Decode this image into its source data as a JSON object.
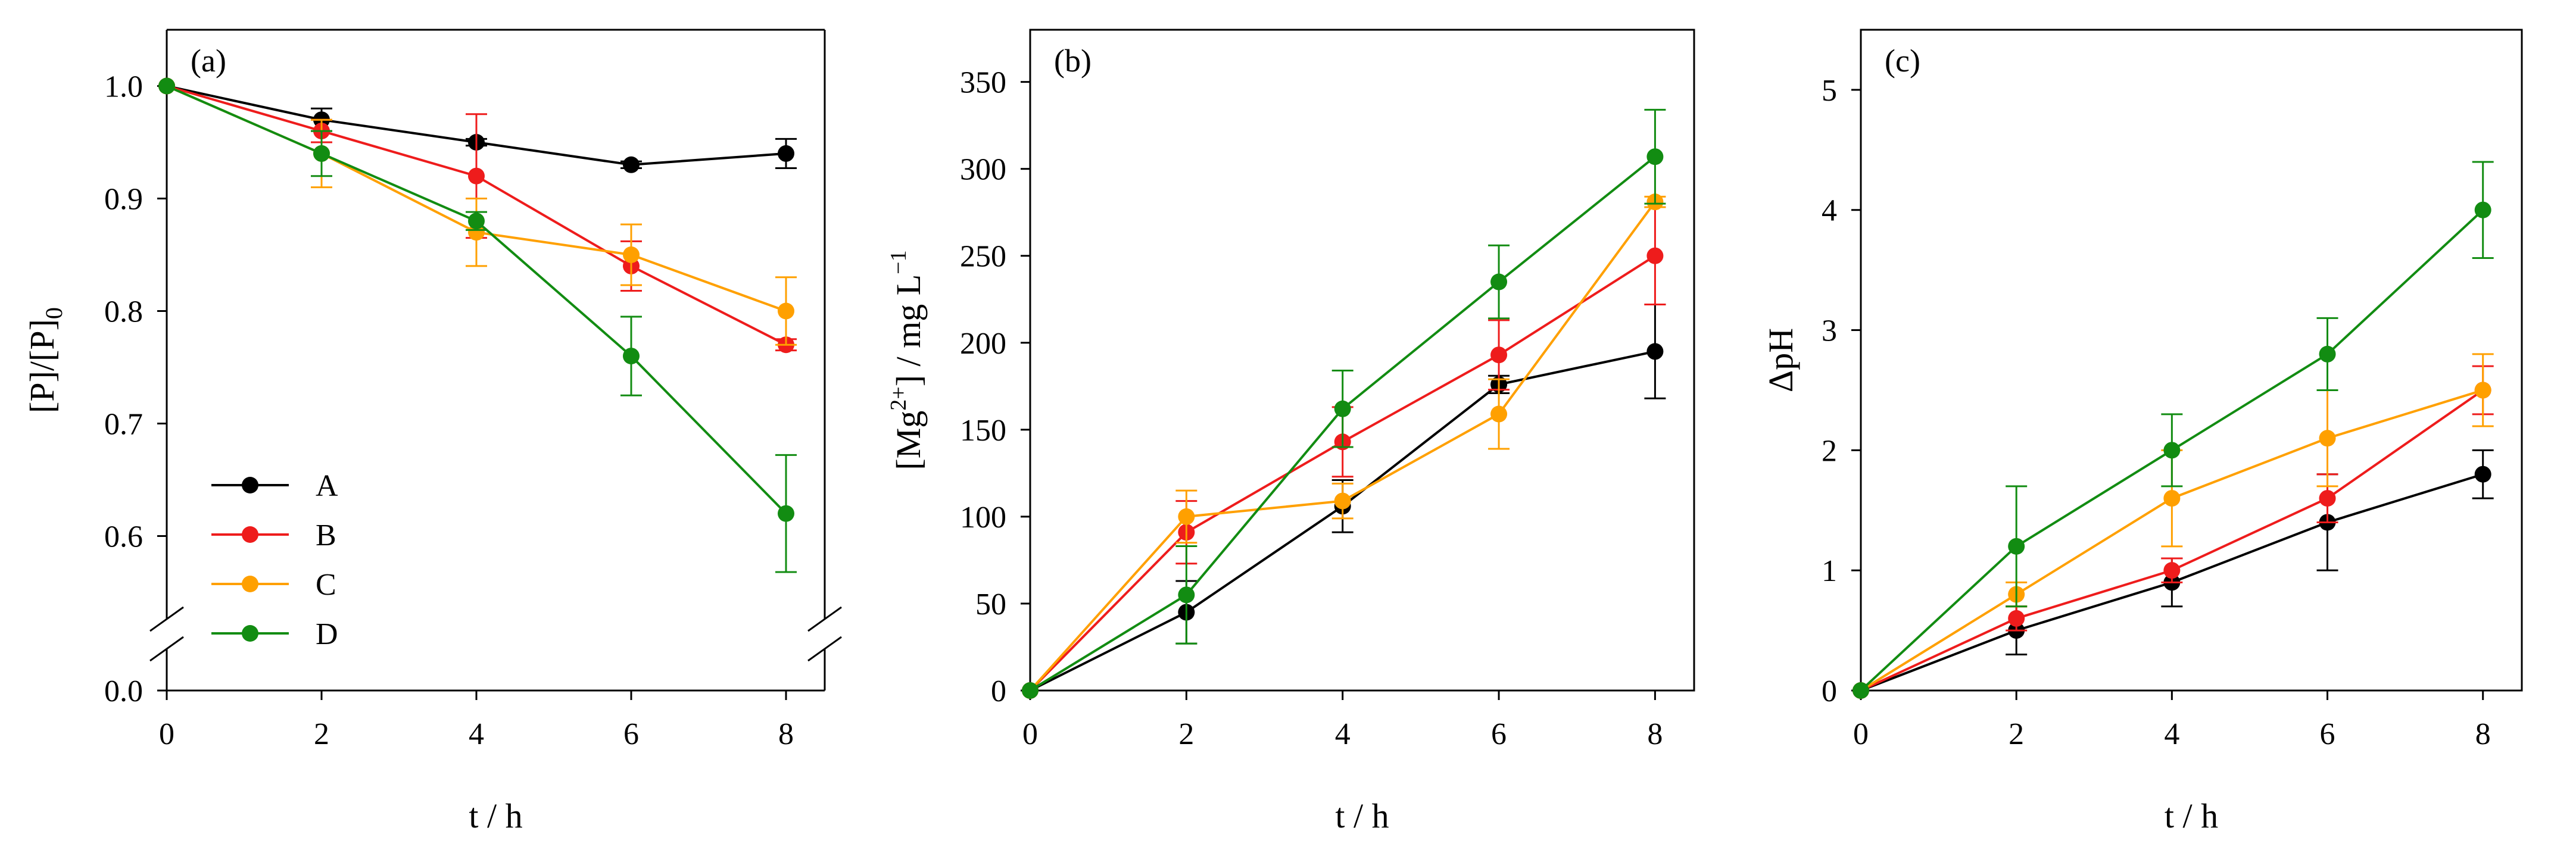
{
  "colors": {
    "A": "#000000",
    "B": "#ee1c1c",
    "C": "#ffa000",
    "D": "#128c12"
  },
  "chart_data": [
    {
      "type": "line",
      "panel_label": "(a)",
      "xlabel": "t / h",
      "ylabel_main": "[P]/[P]",
      "ylabel_sub": "0",
      "x_ticks": [
        "0",
        "2",
        "4",
        "6",
        "8"
      ],
      "y_ticks": [
        "1.0",
        "0.9",
        "0.8",
        "0.7",
        "0.6"
      ],
      "y_break_tick": "0.0",
      "ylim": [
        0.55,
        1.05
      ],
      "xlim": [
        0,
        8.5
      ],
      "legend": {
        "placement": "bottom-left",
        "entries": [
          "A",
          "B",
          "C",
          "D"
        ]
      },
      "x": [
        0,
        2,
        4,
        6,
        8
      ],
      "series": [
        {
          "name": "A",
          "values": [
            1.0,
            0.97,
            0.95,
            0.93,
            0.94
          ],
          "errors": [
            0,
            0.01,
            0.003,
            0.003,
            0.013
          ]
        },
        {
          "name": "B",
          "values": [
            1.0,
            0.96,
            0.92,
            0.84,
            0.77
          ],
          "errors": [
            0,
            0.01,
            0.055,
            0.022,
            0.005
          ]
        },
        {
          "name": "C",
          "values": [
            1.0,
            0.94,
            0.87,
            0.85,
            0.8
          ],
          "errors": [
            0,
            0.03,
            0.03,
            0.027,
            0.03
          ]
        },
        {
          "name": "D",
          "values": [
            1.0,
            0.94,
            0.88,
            0.76,
            0.62
          ],
          "errors": [
            0,
            0.02,
            0.008,
            0.035,
            0.052
          ]
        }
      ]
    },
    {
      "type": "line",
      "panel_label": "(b)",
      "xlabel": "t / h",
      "ylabel_main": "[Mg",
      "ylabel_sup": "2+",
      "ylabel_rest": "] / mg L",
      "ylabel_exp": "−1",
      "x_ticks": [
        "0",
        "2",
        "4",
        "6",
        "8"
      ],
      "y_ticks": [
        "0",
        "50",
        "100",
        "150",
        "200",
        "250",
        "300",
        "350"
      ],
      "ylim": [
        0,
        380
      ],
      "xlim": [
        0,
        8.5
      ],
      "x": [
        0,
        2,
        4,
        6,
        8
      ],
      "series": [
        {
          "name": "A",
          "values": [
            0,
            45,
            106,
            176,
            195
          ],
          "errors": [
            0,
            18,
            15,
            5,
            27
          ]
        },
        {
          "name": "B",
          "values": [
            0,
            91,
            143,
            193,
            250
          ],
          "errors": [
            0,
            18,
            20,
            20,
            28
          ]
        },
        {
          "name": "C",
          "values": [
            0,
            100,
            109,
            159,
            281
          ],
          "errors": [
            0,
            15,
            10,
            20,
            3
          ]
        },
        {
          "name": "D",
          "values": [
            0,
            55,
            162,
            235,
            307
          ],
          "errors": [
            0,
            28,
            22,
            21,
            27
          ]
        }
      ]
    },
    {
      "type": "line",
      "panel_label": "(c)",
      "xlabel": "t / h",
      "ylabel_main": "ΔpH",
      "x_ticks": [
        "0",
        "2",
        "4",
        "6",
        "8"
      ],
      "y_ticks": [
        "0",
        "1",
        "2",
        "3",
        "4",
        "5"
      ],
      "ylim": [
        0,
        5.5
      ],
      "xlim": [
        0,
        8.5
      ],
      "x": [
        0,
        2,
        4,
        6,
        8
      ],
      "series": [
        {
          "name": "A",
          "values": [
            0,
            0.5,
            0.9,
            1.4,
            1.8
          ],
          "errors": [
            0,
            0.2,
            0.2,
            0.4,
            0.2
          ]
        },
        {
          "name": "B",
          "values": [
            0,
            0.6,
            1.0,
            1.6,
            2.5
          ],
          "errors": [
            0,
            0.1,
            0.1,
            0.2,
            0.2
          ]
        },
        {
          "name": "C",
          "values": [
            0,
            0.8,
            1.6,
            2.1,
            2.5
          ],
          "errors": [
            0,
            0.1,
            0.4,
            0.4,
            0.3
          ]
        },
        {
          "name": "D",
          "values": [
            0,
            1.2,
            2.0,
            2.8,
            4.0
          ],
          "errors": [
            0,
            0.5,
            0.3,
            0.3,
            0.4
          ]
        }
      ]
    }
  ]
}
